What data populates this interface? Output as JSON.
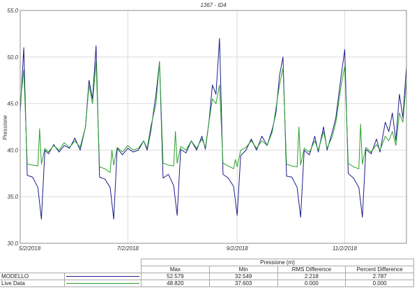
{
  "chart_data": {
    "type": "line",
    "title": "1367 - ID4",
    "ylabel": "Pressione",
    "xlabel": "",
    "ylim": [
      30.0,
      55.0
    ],
    "yticks": [
      "30.0",
      "35.0",
      "40.0",
      "45.0",
      "50.0",
      "55.0"
    ],
    "xrange": [
      "2018-05-02",
      "2018-12-07"
    ],
    "xticks": [
      {
        "date": "2018-05-02",
        "label": "5/2/2018"
      },
      {
        "date": "2018-07-02",
        "label": "7/2/2018"
      },
      {
        "date": "2018-09-02",
        "label": "9/2/2018"
      },
      {
        "date": "2018-11-02",
        "label": "11/2/2018"
      }
    ],
    "grid": true,
    "series": [
      {
        "name": "MODELLO",
        "color": "#1c1c8c",
        "points": [
          [
            "2018-05-02",
            44.0
          ],
          [
            "2018-05-04",
            51.0
          ],
          [
            "2018-05-06",
            37.3
          ],
          [
            "2018-05-09",
            37.1
          ],
          [
            "2018-05-12",
            36.0
          ],
          [
            "2018-05-14",
            32.6
          ],
          [
            "2018-05-16",
            40.0
          ],
          [
            "2018-05-18",
            39.6
          ],
          [
            "2018-05-21",
            40.6
          ],
          [
            "2018-05-24",
            39.8
          ],
          [
            "2018-05-27",
            40.5
          ],
          [
            "2018-05-30",
            40.2
          ],
          [
            "2018-06-02",
            41.3
          ],
          [
            "2018-06-05",
            40.0
          ],
          [
            "2018-06-08",
            42.5
          ],
          [
            "2018-06-10",
            47.5
          ],
          [
            "2018-06-12",
            45.5
          ],
          [
            "2018-06-14",
            51.2
          ],
          [
            "2018-06-16",
            37.1
          ],
          [
            "2018-06-19",
            36.9
          ],
          [
            "2018-06-22",
            36.0
          ],
          [
            "2018-06-24",
            32.6
          ],
          [
            "2018-06-26",
            40.2
          ],
          [
            "2018-06-29",
            39.5
          ],
          [
            "2018-07-02",
            40.2
          ],
          [
            "2018-07-05",
            39.8
          ],
          [
            "2018-07-08",
            40.0
          ],
          [
            "2018-07-11",
            41.0
          ],
          [
            "2018-07-13",
            40.0
          ],
          [
            "2018-07-15",
            42.0
          ],
          [
            "2018-07-18",
            46.0
          ],
          [
            "2018-07-20",
            49.5
          ],
          [
            "2018-07-22",
            37.0
          ],
          [
            "2018-07-25",
            37.4
          ],
          [
            "2018-07-28",
            36.2
          ],
          [
            "2018-07-30",
            33.0
          ],
          [
            "2018-08-01",
            40.1
          ],
          [
            "2018-08-04",
            39.7
          ],
          [
            "2018-08-07",
            41.0
          ],
          [
            "2018-08-10",
            40.0
          ],
          [
            "2018-08-13",
            41.5
          ],
          [
            "2018-08-15",
            40.1
          ],
          [
            "2018-08-17",
            43.0
          ],
          [
            "2018-08-19",
            47.0
          ],
          [
            "2018-08-21",
            46.0
          ],
          [
            "2018-08-23",
            52.0
          ],
          [
            "2018-08-25",
            37.4
          ],
          [
            "2018-08-28",
            37.0
          ],
          [
            "2018-08-31",
            36.1
          ],
          [
            "2018-09-02",
            33.0
          ],
          [
            "2018-09-04",
            39.4
          ],
          [
            "2018-09-07",
            40.0
          ],
          [
            "2018-09-10",
            41.2
          ],
          [
            "2018-09-13",
            40.0
          ],
          [
            "2018-09-16",
            41.5
          ],
          [
            "2018-09-19",
            40.5
          ],
          [
            "2018-09-22",
            42.3
          ],
          [
            "2018-09-24",
            44.0
          ],
          [
            "2018-09-26",
            48.0
          ],
          [
            "2018-09-28",
            50.0
          ],
          [
            "2018-09-30",
            37.2
          ],
          [
            "2018-10-03",
            37.1
          ],
          [
            "2018-10-06",
            36.0
          ],
          [
            "2018-10-08",
            32.8
          ],
          [
            "2018-10-10",
            40.0
          ],
          [
            "2018-10-13",
            39.5
          ],
          [
            "2018-10-16",
            41.5
          ],
          [
            "2018-10-18",
            39.8
          ],
          [
            "2018-10-21",
            42.5
          ],
          [
            "2018-10-23",
            40.0
          ],
          [
            "2018-10-26",
            42.0
          ],
          [
            "2018-10-28",
            43.5
          ],
          [
            "2018-10-31",
            48.0
          ],
          [
            "2018-11-02",
            50.8
          ],
          [
            "2018-11-04",
            37.5
          ],
          [
            "2018-11-07",
            37.0
          ],
          [
            "2018-11-10",
            36.0
          ],
          [
            "2018-11-12",
            32.8
          ],
          [
            "2018-11-14",
            40.1
          ],
          [
            "2018-11-17",
            39.6
          ],
          [
            "2018-11-20",
            41.2
          ],
          [
            "2018-11-22",
            39.8
          ],
          [
            "2018-11-25",
            43.0
          ],
          [
            "2018-11-27",
            42.0
          ],
          [
            "2018-11-29",
            44.0
          ],
          [
            "2018-12-01",
            41.0
          ],
          [
            "2018-12-03",
            46.0
          ],
          [
            "2018-12-05",
            43.5
          ],
          [
            "2018-12-07",
            49.0
          ]
        ]
      },
      {
        "name": "Live Data",
        "color": "#2aa02a",
        "points": [
          [
            "2018-05-02",
            45.0
          ],
          [
            "2018-05-04",
            48.6
          ],
          [
            "2018-05-06",
            38.5
          ],
          [
            "2018-05-09",
            38.4
          ],
          [
            "2018-05-12",
            38.3
          ],
          [
            "2018-05-13",
            42.3
          ],
          [
            "2018-05-14",
            38.5
          ],
          [
            "2018-05-16",
            40.2
          ],
          [
            "2018-05-18",
            39.8
          ],
          [
            "2018-05-21",
            40.5
          ],
          [
            "2018-05-24",
            40.0
          ],
          [
            "2018-05-27",
            40.8
          ],
          [
            "2018-05-30",
            40.3
          ],
          [
            "2018-06-02",
            41.0
          ],
          [
            "2018-06-05",
            40.3
          ],
          [
            "2018-06-08",
            42.5
          ],
          [
            "2018-06-10",
            47.0
          ],
          [
            "2018-06-12",
            45.0
          ],
          [
            "2018-06-14",
            49.5
          ],
          [
            "2018-06-16",
            38.2
          ],
          [
            "2018-06-19",
            38.0
          ],
          [
            "2018-06-22",
            37.6
          ],
          [
            "2018-06-23",
            40.0
          ],
          [
            "2018-06-24",
            38.4
          ],
          [
            "2018-06-26",
            40.3
          ],
          [
            "2018-06-29",
            39.8
          ],
          [
            "2018-07-02",
            40.5
          ],
          [
            "2018-07-05",
            40.0
          ],
          [
            "2018-07-08",
            40.2
          ],
          [
            "2018-07-11",
            41.0
          ],
          [
            "2018-07-13",
            40.2
          ],
          [
            "2018-07-15",
            42.5
          ],
          [
            "2018-07-18",
            45.0
          ],
          [
            "2018-07-20",
            49.5
          ],
          [
            "2018-07-22",
            38.6
          ],
          [
            "2018-07-25",
            38.4
          ],
          [
            "2018-07-28",
            38.3
          ],
          [
            "2018-07-29",
            42.0
          ],
          [
            "2018-07-30",
            38.6
          ],
          [
            "2018-08-01",
            40.4
          ],
          [
            "2018-08-04",
            40.0
          ],
          [
            "2018-08-07",
            41.0
          ],
          [
            "2018-08-10",
            40.2
          ],
          [
            "2018-08-13",
            41.2
          ],
          [
            "2018-08-15",
            40.3
          ],
          [
            "2018-08-17",
            43.0
          ],
          [
            "2018-08-19",
            45.5
          ],
          [
            "2018-08-21",
            45.0
          ],
          [
            "2018-08-23",
            47.0
          ],
          [
            "2018-08-25",
            38.6
          ],
          [
            "2018-08-28",
            38.3
          ],
          [
            "2018-08-31",
            38.0
          ],
          [
            "2018-09-01",
            39.0
          ],
          [
            "2018-09-02",
            38.2
          ],
          [
            "2018-09-04",
            40.0
          ],
          [
            "2018-09-07",
            40.3
          ],
          [
            "2018-09-10",
            41.0
          ],
          [
            "2018-09-13",
            40.2
          ],
          [
            "2018-09-16",
            41.0
          ],
          [
            "2018-09-19",
            40.5
          ],
          [
            "2018-09-22",
            42.0
          ],
          [
            "2018-09-24",
            44.5
          ],
          [
            "2018-09-26",
            47.0
          ],
          [
            "2018-09-28",
            48.8
          ],
          [
            "2018-09-30",
            38.5
          ],
          [
            "2018-10-03",
            38.3
          ],
          [
            "2018-10-06",
            38.2
          ],
          [
            "2018-10-07",
            42.5
          ],
          [
            "2018-10-08",
            38.4
          ],
          [
            "2018-10-10",
            40.2
          ],
          [
            "2018-10-13",
            39.8
          ],
          [
            "2018-10-16",
            41.0
          ],
          [
            "2018-10-18",
            40.0
          ],
          [
            "2018-10-21",
            42.0
          ],
          [
            "2018-10-23",
            40.2
          ],
          [
            "2018-10-26",
            41.5
          ],
          [
            "2018-10-28",
            43.0
          ],
          [
            "2018-10-31",
            47.0
          ],
          [
            "2018-11-02",
            49.0
          ],
          [
            "2018-11-04",
            38.6
          ],
          [
            "2018-11-07",
            38.2
          ],
          [
            "2018-11-10",
            38.0
          ],
          [
            "2018-11-11",
            42.8
          ],
          [
            "2018-11-12",
            38.5
          ],
          [
            "2018-11-14",
            40.3
          ],
          [
            "2018-11-17",
            39.8
          ],
          [
            "2018-11-20",
            40.6
          ],
          [
            "2018-11-22",
            40.0
          ],
          [
            "2018-11-25",
            41.5
          ],
          [
            "2018-11-27",
            41.0
          ],
          [
            "2018-11-29",
            42.0
          ],
          [
            "2018-12-01",
            40.5
          ],
          [
            "2018-12-03",
            44.0
          ],
          [
            "2018-12-05",
            43.0
          ],
          [
            "2018-12-07",
            47.5
          ]
        ]
      }
    ]
  },
  "stats": {
    "header": "Pressione (m)",
    "columns": [
      "Max",
      "Min",
      "RMS Difference",
      "Percent Difference"
    ],
    "rows": [
      {
        "name": "MODELLO",
        "color": "#1c1c8c",
        "max": "52.579",
        "min": "32.549",
        "rms": "2.218",
        "pct": "2.787"
      },
      {
        "name": "Live Data",
        "color": "#2aa02a",
        "max": "48.820",
        "min": "37.603",
        "rms": "0.000",
        "pct": "0.000"
      }
    ]
  }
}
